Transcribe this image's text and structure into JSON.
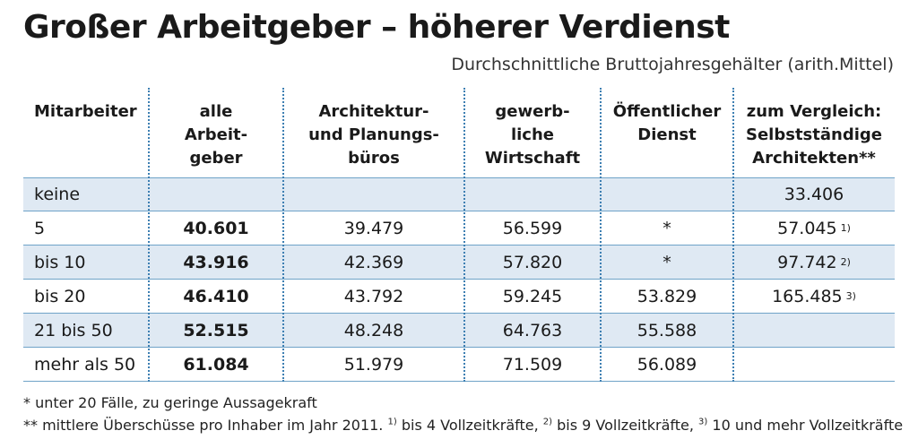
{
  "title": "Großer Arbeitgeber – höherer Verdienst",
  "subtitle": "Durchschnittliche Bruttojahresgehälter (arith.Mittel)",
  "chart_data": {
    "type": "table",
    "title": "Großer Arbeitgeber – höherer Verdienst",
    "subtitle": "Durchschnittliche Bruttojahresgehälter (arith.Mittel)",
    "columns": [
      "Mitarbeiter",
      "alle Arbeit-geber",
      "Architektur- und Planungs-büros",
      "gewerb-liche Wirtschaft",
      "Öffentlicher Dienst",
      "zum Vergleich: Selbstständige Architekten**"
    ],
    "rows": [
      {
        "label": "keine",
        "values": [
          "",
          "",
          "",
          "",
          "33.406"
        ],
        "notes": [
          "",
          "",
          "",
          "",
          ""
        ]
      },
      {
        "label": "5",
        "values": [
          "40.601",
          "39.479",
          "56.599",
          "*",
          "57.045"
        ],
        "notes": [
          "",
          "",
          "",
          "",
          "1)"
        ]
      },
      {
        "label": "bis 10",
        "values": [
          "43.916",
          "42.369",
          "57.820",
          "*",
          "97.742"
        ],
        "notes": [
          "",
          "",
          "",
          "",
          "2)"
        ]
      },
      {
        "label": "bis 20",
        "values": [
          "46.410",
          "43.792",
          "59.245",
          "53.829",
          "165.485"
        ],
        "notes": [
          "",
          "",
          "",
          "",
          "3)"
        ]
      },
      {
        "label": "21 bis 50",
        "values": [
          "52.515",
          "48.248",
          "64.763",
          "55.588",
          ""
        ],
        "notes": [
          "",
          "",
          "",
          "",
          ""
        ]
      },
      {
        "label": "mehr als 50",
        "values": [
          "61.084",
          "51.979",
          "71.509",
          "56.089",
          ""
        ],
        "notes": [
          "",
          "",
          "",
          "",
          ""
        ]
      }
    ]
  },
  "headers": {
    "h0": "Mitarbeiter",
    "h1_lines": [
      "alle",
      "Arbeit-",
      "geber"
    ],
    "h2_lines": [
      "Architektur-",
      "und Planungs-",
      "büros"
    ],
    "h3_lines": [
      "gewerb-",
      "liche",
      "Wirtschaft"
    ],
    "h4_lines": [
      "Öffentlicher",
      "Dienst"
    ],
    "h5_lines": [
      "zum Vergleich:",
      "Selbstständige",
      "Architekten**"
    ]
  },
  "footnotes": {
    "line1": "*   unter 20 Fälle, zu geringe Aussagekraft",
    "line2_prefix": "** mittlere Überschüsse pro Inhaber im Jahr 2011. ",
    "fn1_mark": "1)",
    "fn1_text": " bis 4 Vollzeitkräfte, ",
    "fn2_mark": "2)",
    "fn2_text": " bis 9 Vollzeitkräfte, ",
    "fn3_mark": "3)",
    "fn3_text": " 10 und mehr Vollzeitkräfte"
  },
  "colors": {
    "shade": "#dfe9f3",
    "rule": "#6fa3c8",
    "dotted": "#3d7fb2"
  }
}
